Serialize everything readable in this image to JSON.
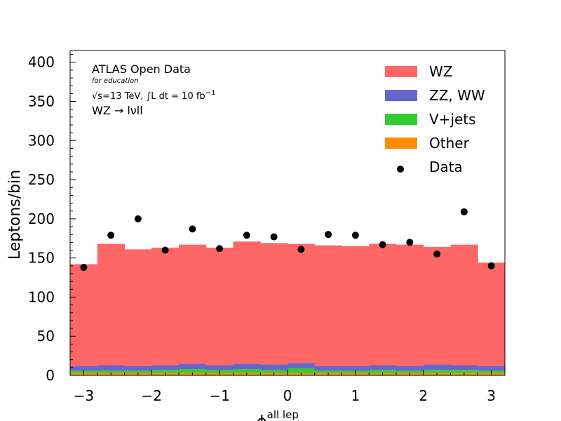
{
  "chart_data": {
    "type": "bar",
    "stacked": true,
    "bin_edges": [
      -3.2,
      -2.8,
      -2.4,
      -2.0,
      -1.6,
      -1.2,
      -0.8,
      -0.4,
      0.0,
      0.4,
      0.8,
      1.2,
      1.6,
      2.0,
      2.4,
      2.8,
      3.2
    ],
    "series": [
      {
        "name": "Other",
        "color": "#ff8c00",
        "values": [
          3,
          3,
          3,
          3,
          3,
          3,
          3,
          3,
          3,
          3,
          3,
          3,
          3,
          3,
          3,
          3
        ]
      },
      {
        "name": "V+jets",
        "color": "#33cc33",
        "values": [
          3,
          3,
          3,
          4,
          5,
          4,
          5,
          4,
          6,
          3,
          3,
          4,
          3,
          4,
          4,
          3
        ]
      },
      {
        "name": "ZZ, WW",
        "color": "#6666cc",
        "values": [
          6,
          7,
          6,
          6,
          7,
          6,
          7,
          7,
          7,
          6,
          6,
          6,
          6,
          7,
          6,
          6
        ]
      },
      {
        "name": "WZ",
        "color": "#ff6666",
        "values": [
          130,
          155,
          149,
          150,
          152,
          150,
          156,
          155,
          152,
          154,
          153,
          155,
          155,
          150,
          154,
          132
        ]
      }
    ],
    "data_points": {
      "name": "Data",
      "color": "#000000",
      "x": [
        -3.0,
        -2.6,
        -2.2,
        -1.8,
        -1.4,
        -1.0,
        -0.6,
        -0.2,
        0.2,
        0.6,
        1.0,
        1.4,
        1.8,
        2.2,
        2.6,
        3.0
      ],
      "y": [
        138,
        179,
        200,
        160,
        187,
        162,
        179,
        177,
        161,
        180,
        179,
        167,
        170,
        155,
        209,
        140
      ]
    },
    "xlim": [
      -3.2,
      3.2
    ],
    "ylim": [
      0,
      415
    ],
    "xticks": [
      -3,
      -2,
      -1,
      0,
      1,
      2,
      3
    ],
    "xtick_labels": [
      "−3",
      "−2",
      "−1",
      "0",
      "1",
      "2",
      "3"
    ],
    "yticks": [
      0,
      50,
      100,
      150,
      200,
      250,
      300,
      350,
      400
    ],
    "ytick_labels": [
      "0",
      "50",
      "100",
      "150",
      "200",
      "250",
      "300",
      "350",
      "400"
    ],
    "xlabel": "ϕ",
    "xlabel_sup": "all lep",
    "ylabel": "Leptons/bin",
    "legend": {
      "placement": "top-right",
      "entries": [
        {
          "label": "WZ",
          "color": "#ff6666",
          "marker": "rect"
        },
        {
          "label": "ZZ, WW",
          "color": "#6666cc",
          "marker": "rect"
        },
        {
          "label": "V+jets",
          "color": "#33cc33",
          "marker": "rect"
        },
        {
          "label": "Other",
          "color": "#ff8c00",
          "marker": "rect"
        },
        {
          "label": "Data",
          "color": "#000000",
          "marker": "dot"
        }
      ]
    },
    "annotations": {
      "title": "ATLAS Open Data",
      "subtitle": "for education",
      "sqrt_s": "√s",
      "energy": "=13 TeV, ∫L dt = 10 fb",
      "energy_sup": "−1",
      "process": "WZ → lνll"
    }
  }
}
